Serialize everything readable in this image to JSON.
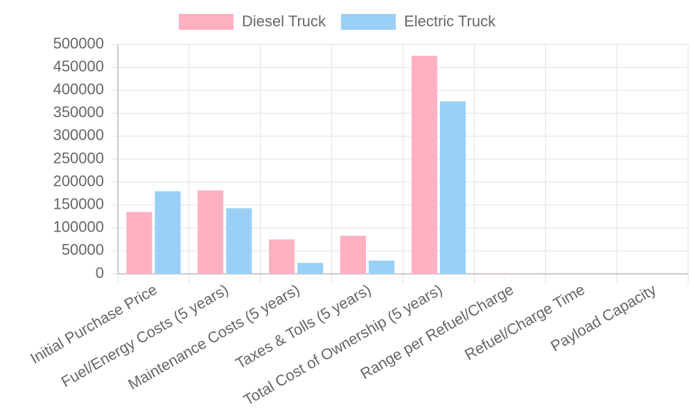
{
  "chart_data": {
    "type": "bar",
    "categories": [
      "Initial Purchase Price",
      "Fuel/Energy Costs (5 years)",
      "Maintenance Costs (5 years)",
      "Taxes & Tolls (5 years)",
      "Total Cost of Ownership (5 years)",
      "Range per Refuel/Charge",
      "Refuel/Charge Time",
      "Payload Capacity"
    ],
    "series": [
      {
        "name": "Diesel Truck",
        "color": "#ffb1c1",
        "values": [
          135000,
          182000,
          75000,
          83000,
          475000,
          1200,
          0.25,
          25
        ]
      },
      {
        "name": "Electric Truck",
        "color": "#9ad0f5",
        "values": [
          180000,
          143000,
          24000,
          29000,
          376000,
          500,
          2,
          22
        ]
      }
    ],
    "ylim": [
      0,
      500000
    ],
    "yticks": [
      0,
      50000,
      100000,
      150000,
      200000,
      250000,
      300000,
      350000,
      400000,
      450000,
      500000
    ],
    "grid": true,
    "legend": "top"
  }
}
